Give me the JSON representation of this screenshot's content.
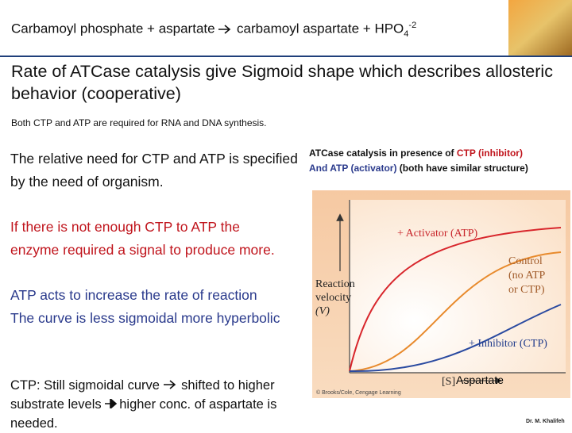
{
  "header": {
    "left": "Carbamoyl phosphate + aspartate",
    "right": "carbamoyl aspartate + HPO",
    "subscript": "4",
    "superscript": "-2"
  },
  "headline": "Rate of ATCase catalysis give Sigmoid shape which describes allosteric behavior (cooperative)",
  "note": "Both CTP and ATP are required for RNA and DNA synthesis.",
  "left_column": {
    "need": "The relative need for CTP and ATP is specified by the need of organism.",
    "signal": "If there is not enough CTP to ATP the enzyme required a signal to produce more.",
    "atp_lines": [
      "ATP acts to increase the rate of reaction",
      "The curve is less sigmoidal more hyperbolic"
    ],
    "ctp_parts": [
      "CTP: Still sigmoidal curve",
      "shifted to higher substrate levels",
      "higher conc. of aspartate is needed."
    ]
  },
  "caption": {
    "intro": "ATCase catalysis in presence of ",
    "inhibitor": "CTP (inhibitor)",
    "activator": "And ATP (activator)",
    "rest": " (both have similar structure)"
  },
  "figure": {
    "activator": "+ Activator (ATP)",
    "control": [
      "Control",
      "(no ATP",
      "or CTP)"
    ],
    "y_axis": [
      "Reaction",
      "velocity",
      "(V)"
    ],
    "inhibitor": "+ Inhibitor (CTP)",
    "x_axis": "[S]",
    "x_overlay": "Aspartate",
    "credit": "© Brooks/Cole, Cengage Learning"
  },
  "footer": "Dr. M. Khalifeh"
}
